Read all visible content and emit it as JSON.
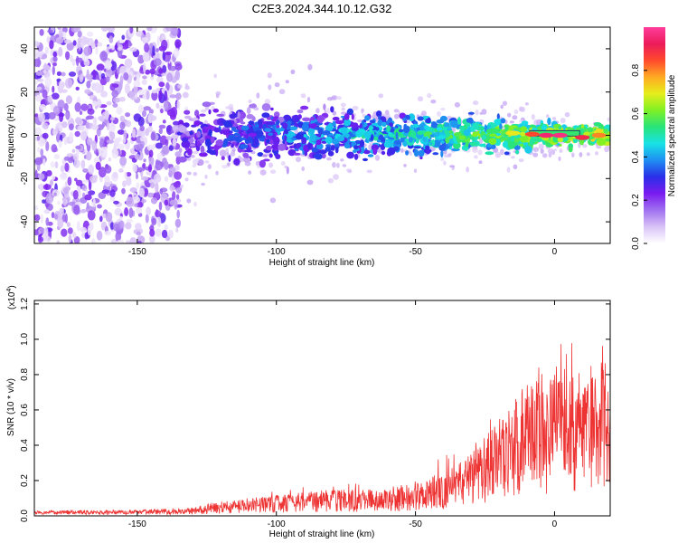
{
  "title": "C2E3.2024.344.10.12.G32",
  "chart_data": [
    {
      "type": "heatmap",
      "title": "C2E3.2024.344.10.12.G32",
      "xlabel": "Height of straight line (km)",
      "ylabel": "Frequency (Hz)",
      "xlim": [
        -187,
        20
      ],
      "ylim": [
        -50,
        50
      ],
      "x_ticks": [
        -150,
        -100,
        -50,
        0
      ],
      "y_ticks": [
        -40,
        -20,
        0,
        20,
        40
      ],
      "x_tick_labels": [
        "-150",
        "-100",
        "-50",
        "0"
      ],
      "y_tick_labels": [
        "-40",
        "-20",
        "0",
        "20",
        "40"
      ],
      "colorbar": {
        "label": "Normalized spectral amplitude",
        "range": [
          0,
          1
        ],
        "ticks": [
          0.0,
          0.2,
          0.4,
          0.6,
          0.8
        ],
        "tick_labels": [
          "0.0",
          "0.2",
          "0.4",
          "0.6",
          "0.8"
        ],
        "colormap": [
          "#ffffff",
          "#d9c3f7",
          "#a070f0",
          "#7a1cf0",
          "#2a2ee8",
          "#1f8ff2",
          "#18e2e6",
          "#28e47a",
          "#7ff024",
          "#e6ee1c",
          "#ffaa22",
          "#ff4a2c",
          "#ec1c5a",
          "#ff3c9c"
        ]
      },
      "band": {
        "noise_region": [
          -187,
          -135
        ],
        "center_frequency": 0,
        "stable_segment": [
          -5,
          5
        ]
      }
    },
    {
      "type": "line",
      "xlabel": "Height of straight line (km)",
      "ylabel": "SNR (10 * v/v)",
      "scale_label": "(x10",
      "scale_exponent": "4",
      "scale_suffix": ")",
      "xlim": [
        -187,
        20
      ],
      "ylim": [
        0,
        1.22
      ],
      "x_ticks": [
        -150,
        -100,
        -50,
        0
      ],
      "y_ticks": [
        0.0,
        0.2,
        0.4,
        0.6,
        0.8,
        1.0,
        1.2
      ],
      "x_tick_labels": [
        "-150",
        "-100",
        "-50",
        "0"
      ],
      "y_tick_labels": [
        "0.0",
        "0.2",
        "0.4",
        "0.6",
        "0.8",
        "1.0",
        "1.2"
      ],
      "color": "#ee3333",
      "envelope": {
        "x": [
          -187,
          -170,
          -150,
          -135,
          -120,
          -100,
          -80,
          -60,
          -50,
          -40,
          -30,
          -25,
          -20,
          -15,
          -10,
          -5,
          0,
          5,
          10,
          15,
          20
        ],
        "y": [
          0.02,
          0.025,
          0.025,
          0.04,
          0.08,
          0.12,
          0.15,
          0.15,
          0.2,
          0.25,
          0.35,
          0.45,
          0.55,
          0.65,
          0.75,
          0.8,
          0.85,
          0.85,
          0.8,
          0.85,
          0.9
        ]
      }
    }
  ]
}
